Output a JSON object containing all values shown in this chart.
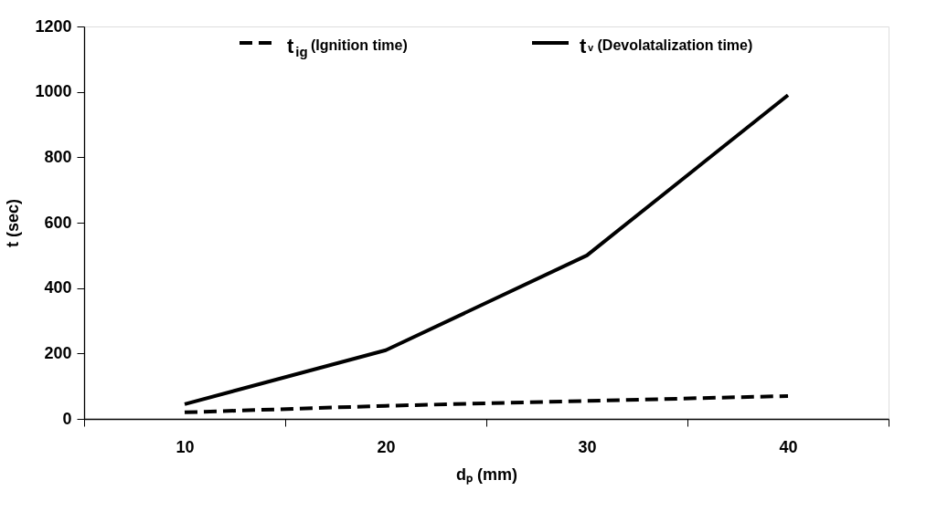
{
  "chart_data": {
    "type": "line",
    "xlabel": "dₚ (mm)",
    "ylabel": "t (sec)",
    "categories": [
      "10",
      "20",
      "30",
      "40"
    ],
    "series": [
      {
        "name": "t$_{ig}$ (Ignition time)",
        "color": "#000000",
        "line_style": "dashed",
        "values": [
          20,
          40,
          55,
          70
        ]
      },
      {
        "name": "tᵥ (Devolatalization time)",
        "color": "#000000",
        "line_style": "solid",
        "values": [
          45,
          210,
          500,
          990
        ]
      }
    ],
    "ylim": [
      0,
      1200
    ],
    "yticks": [
      0,
      200,
      400,
      600,
      800,
      1000,
      1200
    ],
    "grid": false,
    "legend": "top",
    "marker": "none"
  }
}
